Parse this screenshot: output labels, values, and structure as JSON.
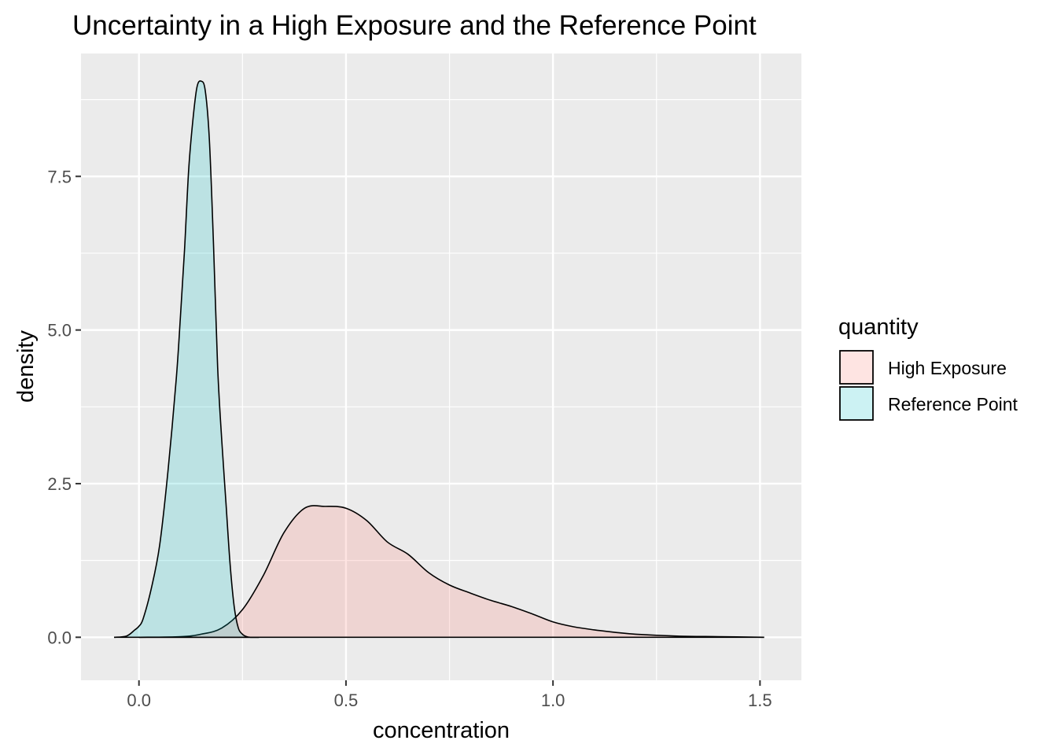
{
  "chart_data": {
    "type": "area",
    "title": "Uncertainty in a High Exposure and the Reference Point",
    "xlabel": "concentration",
    "ylabel": "density",
    "xlim": [
      -0.14,
      1.6
    ],
    "ylim": [
      -0.7,
      9.5
    ],
    "x_ticks": [
      0.0,
      0.5,
      1.0,
      1.5
    ],
    "x_tick_labels": [
      "0.0",
      "0.5",
      "1.0",
      "1.5"
    ],
    "y_ticks": [
      0.0,
      2.5,
      5.0,
      7.5
    ],
    "y_tick_labels": [
      "0.0",
      "2.5",
      "5.0",
      "7.5"
    ],
    "grid": true,
    "panel_background": "#ebebeb",
    "legend": {
      "title": "quantity",
      "position": "right",
      "entries": [
        "High Exposure",
        "Reference Point"
      ]
    },
    "series": [
      {
        "name": "High Exposure",
        "color": "#f8766d",
        "fill_alpha": 0.2,
        "x": [
          0.0,
          0.1,
          0.15,
          0.2,
          0.25,
          0.3,
          0.35,
          0.4,
          0.45,
          0.5,
          0.55,
          0.6,
          0.65,
          0.7,
          0.75,
          0.8,
          0.85,
          0.9,
          0.95,
          1.0,
          1.05,
          1.1,
          1.15,
          1.2,
          1.3,
          1.4,
          1.51
        ],
        "y": [
          0.0,
          0.01,
          0.05,
          0.15,
          0.45,
          1.0,
          1.7,
          2.1,
          2.13,
          2.1,
          1.9,
          1.55,
          1.35,
          1.05,
          0.85,
          0.72,
          0.6,
          0.5,
          0.38,
          0.25,
          0.17,
          0.12,
          0.08,
          0.05,
          0.02,
          0.01,
          0.0
        ]
      },
      {
        "name": "Reference Point",
        "color": "#00bfc4",
        "fill_alpha": 0.2,
        "x": [
          -0.06,
          -0.03,
          -0.01,
          0.0,
          0.01,
          0.03,
          0.05,
          0.07,
          0.09,
          0.1,
          0.11,
          0.12,
          0.13,
          0.14,
          0.15,
          0.16,
          0.17,
          0.18,
          0.19,
          0.2,
          0.21,
          0.22,
          0.23,
          0.24,
          0.25,
          0.26,
          0.27,
          0.29
        ],
        "y": [
          0.0,
          0.02,
          0.12,
          0.18,
          0.3,
          0.8,
          1.5,
          2.7,
          4.2,
          5.2,
          6.3,
          7.6,
          8.4,
          8.95,
          9.05,
          8.9,
          8.1,
          6.4,
          4.4,
          3.2,
          2.2,
          1.2,
          0.5,
          0.15,
          0.05,
          0.01,
          0.0,
          0.0
        ]
      }
    ]
  }
}
